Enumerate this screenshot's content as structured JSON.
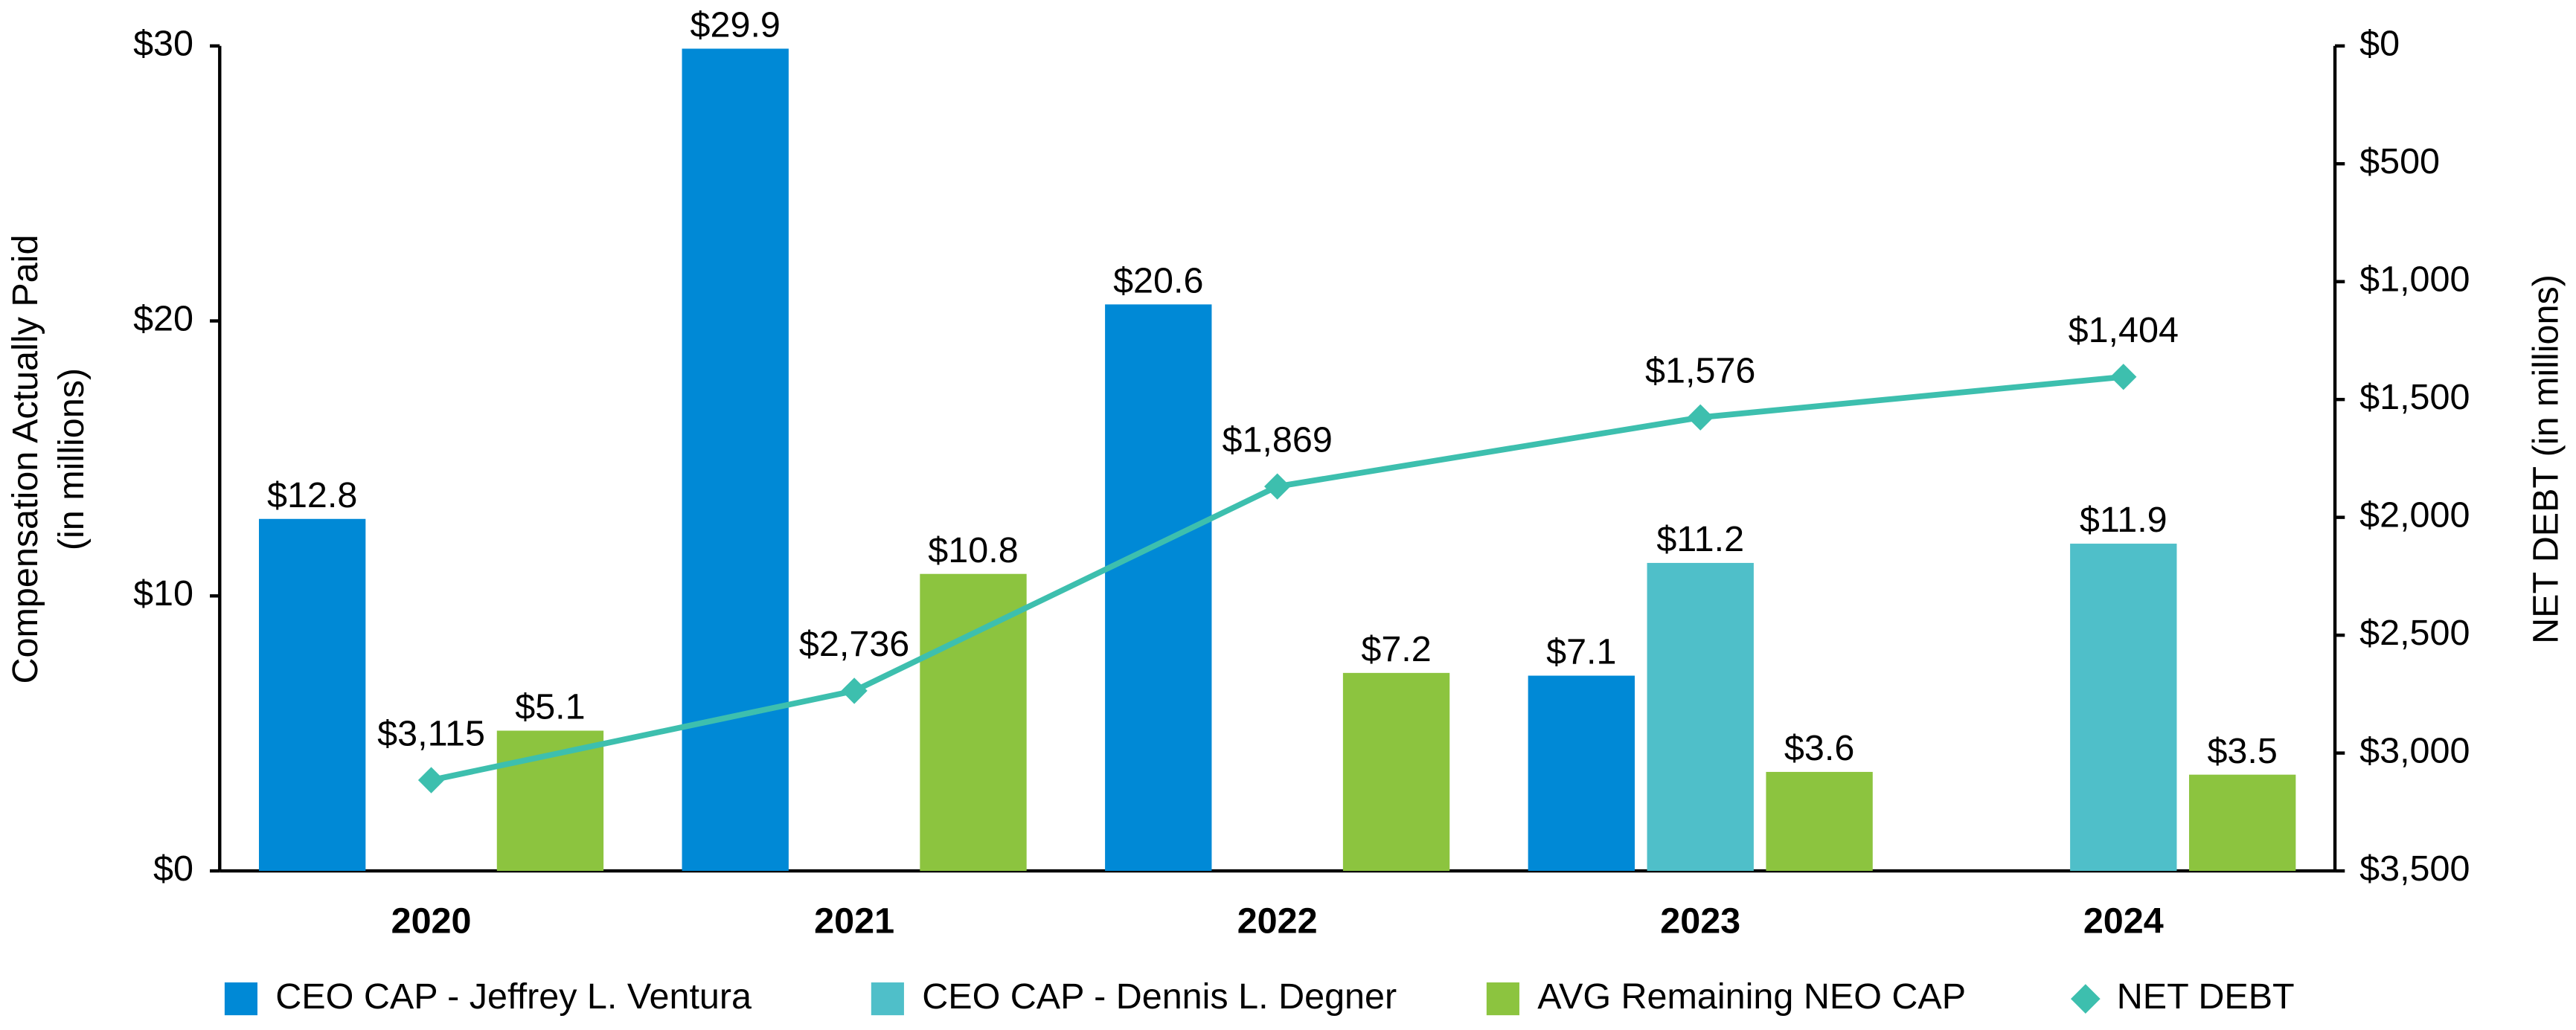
{
  "chart_data": {
    "type": "bar",
    "categories": [
      "2020",
      "2021",
      "2022",
      "2023",
      "2024"
    ],
    "y_label": [
      "Compensation Actually Paid",
      "(in millions)"
    ],
    "y2_label": "NET DEBT (in millions)",
    "ylim": [
      0,
      30
    ],
    "yticks": [
      {
        "value": 0,
        "label": "$0"
      },
      {
        "value": 10,
        "label": "$10"
      },
      {
        "value": 20,
        "label": "$20"
      },
      {
        "value": 30,
        "label": "$30"
      }
    ],
    "y2lim": [
      0,
      3500
    ],
    "y2_reversed": true,
    "y2ticks": [
      {
        "value": 0,
        "label": "$0"
      },
      {
        "value": 500,
        "label": "$500"
      },
      {
        "value": 1000,
        "label": "$1,000"
      },
      {
        "value": 1500,
        "label": "$1,500"
      },
      {
        "value": 2000,
        "label": "$2,000"
      },
      {
        "value": 2500,
        "label": "$2,500"
      },
      {
        "value": 3000,
        "label": "$3,000"
      },
      {
        "value": 3500,
        "label": "$3,500"
      }
    ],
    "legend": "bottom",
    "series": [
      {
        "name": "CEO CAP - Jeffrey L. Ventura",
        "color": "#0089d6",
        "type": "bar",
        "values": [
          12.8,
          29.9,
          20.6,
          7.1,
          null
        ],
        "value_labels": [
          "$12.8",
          "$29.9",
          "$20.6",
          "$7.1",
          null
        ]
      },
      {
        "name": "CEO CAP - Dennis L. Degner",
        "color": "#4fbfc9",
        "type": "bar",
        "values": [
          null,
          null,
          null,
          11.2,
          11.9
        ],
        "value_labels": [
          null,
          null,
          null,
          "$11.2",
          "$11.9"
        ]
      },
      {
        "name": "AVG Remaining NEO CAP",
        "color": "#8cc43f",
        "type": "bar",
        "values": [
          5.1,
          10.8,
          7.2,
          3.6,
          3.5
        ],
        "value_labels": [
          "$5.1",
          "$10.8",
          "$7.2",
          "$3.6",
          "$3.5"
        ]
      },
      {
        "name": "NET DEBT",
        "color": "#3dbfae",
        "type": "line",
        "axis": "y2",
        "values": [
          3115,
          2736,
          1869,
          1576,
          1404
        ],
        "value_labels": [
          "$3,115",
          "$2,736",
          "$1,869",
          "$1,576",
          "$1,404"
        ]
      }
    ]
  }
}
